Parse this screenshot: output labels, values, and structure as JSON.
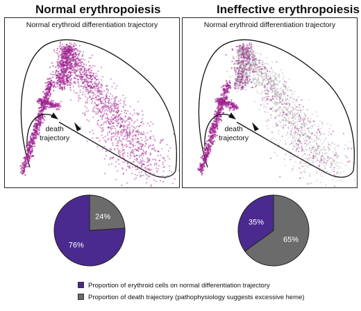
{
  "panels": [
    {
      "title": "Normal erythropoiesis",
      "trajectory_title": "Normal erythroid differentiation trajectory",
      "death_label_line1": "death",
      "death_label_line2": "trajectory",
      "ineffective": false
    },
    {
      "title": "Ineffective erythropoiesis",
      "trajectory_title": "Normal erythroid differentiation trajectory",
      "death_label_line1": "death",
      "death_label_line2": "trajectory",
      "ineffective": true
    }
  ],
  "colors": {
    "differentiation": "#4a2a8f",
    "death": "#6b6b6b",
    "cells": "#a0208f",
    "cells_grey": "#9a9a9a"
  },
  "chart_data": [
    {
      "type": "pie",
      "slices": [
        {
          "name": "Proportion of erythroid cells on normal differentiation trajectory",
          "value": 76,
          "label": "76%"
        },
        {
          "name": "Proportion of death trajectory (pathophysiology suggests excessive heme)",
          "value": 24,
          "label": "24%"
        }
      ]
    },
    {
      "type": "pie",
      "slices": [
        {
          "name": "Proportion of erythroid cells on normal differentiation trajectory",
          "value": 35,
          "label": "35%"
        },
        {
          "name": "Proportion of death trajectory (pathophysiology suggests excessive heme)",
          "value": 65,
          "label": "65%"
        }
      ]
    }
  ],
  "legend": [
    {
      "label": "Proportion of erythroid cells on normal differentiation trajectory"
    },
    {
      "label": "Proportion of death trajectory (pathophysiology suggests excessive heme)"
    }
  ]
}
